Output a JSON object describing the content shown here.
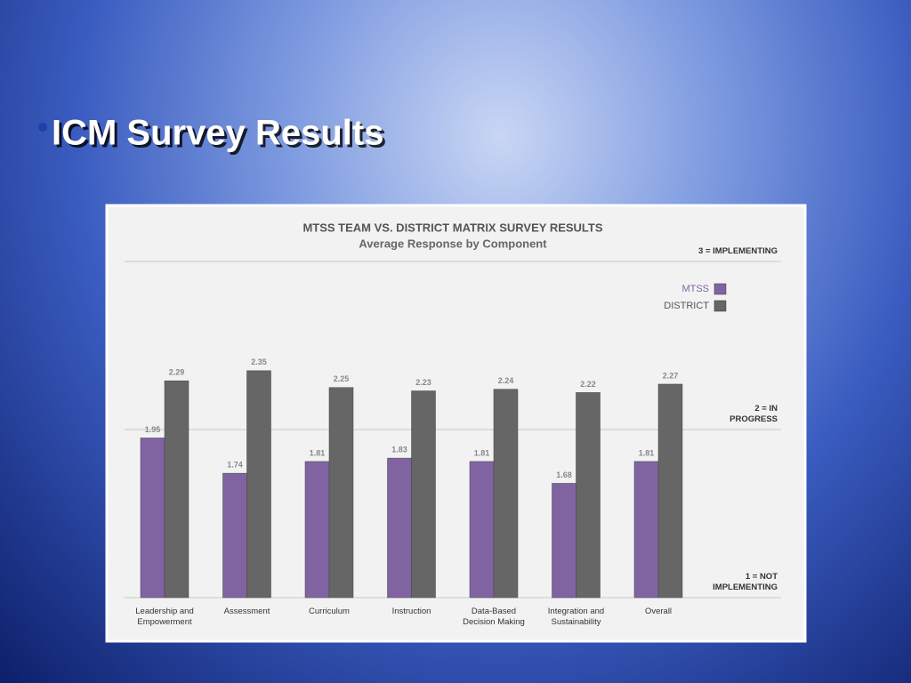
{
  "heading": "ICM Survey Results",
  "chart_data": {
    "type": "bar",
    "title": "MTSS TEAM VS. DISTRICT MATRIX SURVEY RESULTS",
    "subtitle": "Average Response by Component",
    "categories": [
      "Leadership and Empowerment",
      "Assessment",
      "Curriculum",
      "Instruction",
      "Data-Based Decision Making",
      "Integration and Sustainability",
      "Overall"
    ],
    "series": [
      {
        "name": "MTSS",
        "color": "#8064a2",
        "values": [
          1.95,
          1.74,
          1.81,
          1.83,
          1.81,
          1.68,
          1.81
        ]
      },
      {
        "name": "DISTRICT",
        "color": "#666666",
        "values": [
          2.29,
          2.35,
          2.25,
          2.23,
          2.24,
          2.22,
          2.27
        ]
      }
    ],
    "ylim": [
      1,
      3
    ],
    "yticks": [
      {
        "value": 1,
        "label": "1 = NOT IMPLEMENTING"
      },
      {
        "value": 2,
        "label": "2 = IN PROGRESS"
      },
      {
        "value": 3,
        "label": "3 = IMPLEMENTING"
      }
    ],
    "grid": true,
    "legend": "top-right"
  }
}
